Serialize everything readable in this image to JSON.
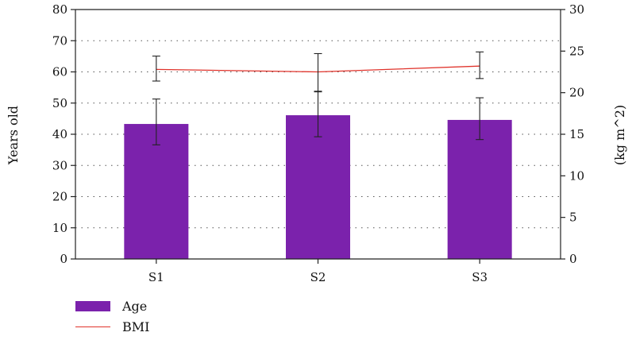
{
  "chart_data": {
    "type": "bar",
    "categories": [
      "S1",
      "S2",
      "S3"
    ],
    "series": [
      {
        "name": "Age",
        "type": "bar",
        "axis": "left",
        "values": [
          43.3,
          46.1,
          44.6
        ],
        "error": [
          [
            36.6,
            51.3
          ],
          [
            39.2,
            53.8
          ],
          [
            38.3,
            51.7
          ]
        ],
        "color": "#7b22ac"
      },
      {
        "name": "BMI",
        "type": "line",
        "axis": "right",
        "values": [
          22.8,
          22.5,
          23.2
        ],
        "error": [
          [
            21.4,
            24.4
          ],
          [
            20.1,
            24.7
          ],
          [
            21.7,
            24.9
          ]
        ],
        "color": "#e0332b"
      }
    ],
    "ylabel": "Years old",
    "y2label": "(kg m^2)",
    "ylim": [
      0,
      80
    ],
    "y2lim": [
      0,
      30
    ],
    "yticks": [
      "0",
      "10",
      "20",
      "30",
      "40",
      "50",
      "60",
      "70",
      "80"
    ],
    "y2ticks": [
      "0",
      "5",
      "10",
      "15",
      "20",
      "25",
      "30"
    ],
    "grid": "horizontal-dotted",
    "legend_position": "bottom-left"
  }
}
